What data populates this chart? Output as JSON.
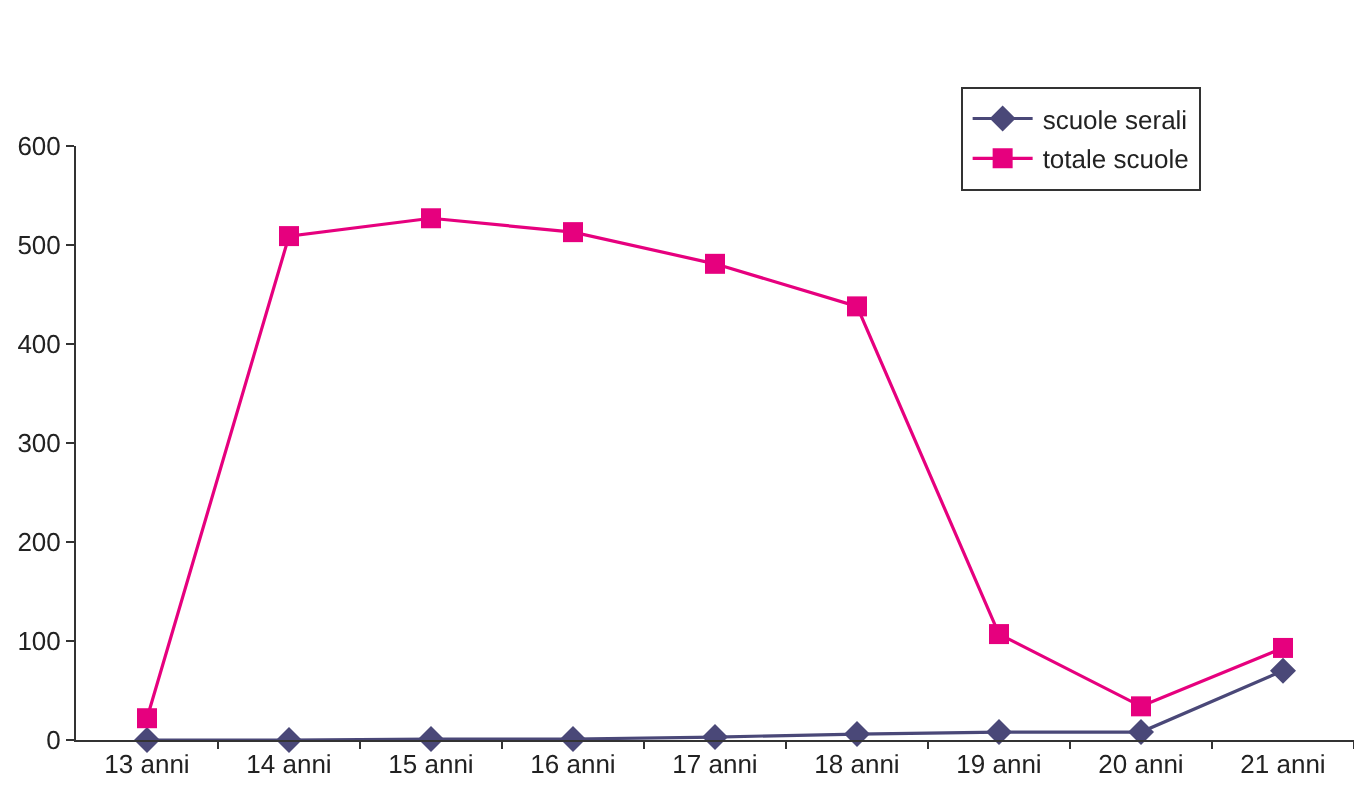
{
  "chart_data": {
    "type": "line",
    "categories": [
      "13 anni",
      "14 anni",
      "15 anni",
      "16 anni",
      "17 anni",
      "18 anni",
      "19 anni",
      "20 anni",
      "21 anni"
    ],
    "series": [
      {
        "name": "scuole serali",
        "color": "#4a4878",
        "marker": "diamond",
        "values": [
          0,
          0,
          1,
          1,
          3,
          6,
          8,
          8,
          70
        ]
      },
      {
        "name": "totale scuole",
        "color": "#e6007e",
        "marker": "square",
        "values": [
          22,
          509,
          527,
          513,
          481,
          438,
          107,
          34,
          93
        ]
      }
    ],
    "ylim": [
      0,
      600
    ],
    "yticks": [
      0,
      100,
      200,
      300,
      400,
      500,
      600
    ],
    "grid": false,
    "legend": "top right"
  }
}
